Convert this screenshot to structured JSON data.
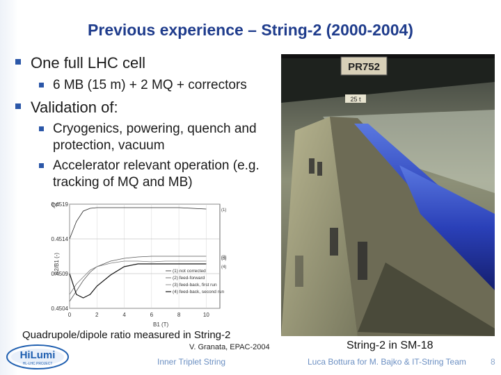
{
  "title": "Previous experience – String-2 (2000-2004)",
  "bullets": {
    "b1": "One full LHC cell",
    "b1_sub": "6 MB (15 m) + 2 MQ + correctors",
    "b2": "Validation of:",
    "b2_sub1": "Cryogenics, powering, quench and protection, vacuum",
    "b2_sub2": "Accelerator relevant operation (e.g. tracking of MQ and MB)"
  },
  "photo": {
    "sign_label": "PR752",
    "crane_label": "25 t",
    "caption": "String-2 in SM-18"
  },
  "chart_caption": "Quadrupole/dipole ratio measured in String-2",
  "reference": "V. Granata, EPAC-2004",
  "footer": {
    "left": "Inner Triplet String",
    "right": "Luca Bottura for M. Bajko & IT-String Team",
    "page": "8"
  },
  "logo": {
    "text": "HiLumi",
    "subtext": "HL-LHC PROJECT"
  },
  "chart_data": {
    "type": "line",
    "xlabel": "B1 (T)",
    "ylabel": "B2/B1 (-)",
    "ylabel_top": "QF",
    "xlim": [
      0,
      11
    ],
    "ylim": [
      0.4504,
      0.4519
    ],
    "x_ticks": [
      "0",
      "2",
      "4",
      "6",
      "8",
      "10"
    ],
    "y_ticks": [
      "0.4519",
      "0.4514",
      "0.4509",
      "0.4504"
    ],
    "series": [
      {
        "name": "(1) not corrected",
        "label": "(1)",
        "x": [
          0,
          0.5,
          1,
          1.5,
          2,
          3,
          4,
          5,
          6,
          7,
          8,
          9,
          10
        ],
        "y": [
          0.4514,
          0.45165,
          0.4518,
          0.45184,
          0.45185,
          0.45185,
          0.45185,
          0.45185,
          0.45185,
          0.45185,
          0.45185,
          0.45184,
          0.45183
        ]
      },
      {
        "name": "(2) feed-forward",
        "label": "(2)",
        "x": [
          0,
          0.5,
          1,
          1.5,
          2,
          3,
          4,
          5,
          6,
          7,
          8,
          9,
          10
        ],
        "y": [
          0.4505,
          0.45065,
          0.4508,
          0.45092,
          0.451,
          0.45108,
          0.45112,
          0.45114,
          0.45115,
          0.45115,
          0.45115,
          0.45115,
          0.45115
        ]
      },
      {
        "name": "(3) feed-back, first run",
        "label": "(3)",
        "x": [
          0,
          0.5,
          1,
          1.5,
          2,
          3,
          4,
          5,
          6,
          7,
          8,
          9,
          10
        ],
        "y": [
          0.4506,
          0.45075,
          0.45085,
          0.45095,
          0.451,
          0.45105,
          0.45108,
          0.45108,
          0.45107,
          0.45108,
          0.45108,
          0.45108,
          0.45108
        ]
      },
      {
        "name": "(4) feed-back, second run",
        "label": "(4)",
        "x": [
          0,
          0.5,
          1,
          1.5,
          2,
          3,
          4,
          5,
          6,
          7,
          8,
          9,
          10
        ],
        "y": [
          0.4509,
          0.4506,
          0.45055,
          0.4506,
          0.45072,
          0.45088,
          0.451,
          0.45104,
          0.45104,
          0.45104,
          0.45104,
          0.45104,
          0.45104
        ]
      }
    ],
    "legend_position": "bottom-right",
    "grid": true
  }
}
